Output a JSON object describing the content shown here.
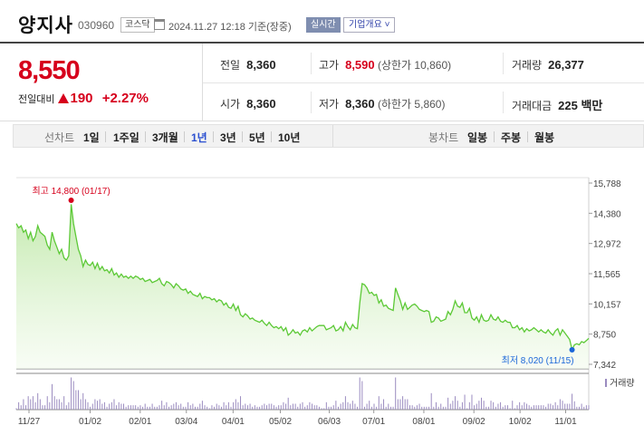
{
  "header": {
    "name": "양지사",
    "code": "030960",
    "market": "코스닥",
    "datetime": "2024.11.27 12:18 기준(장중)",
    "realtime_label": "실시간",
    "company_info_label": "기업개요 ˅"
  },
  "quote": {
    "price": "8,550",
    "change_label": "전일대비",
    "change_amount": "190",
    "change_pct": "+2.27%",
    "prev_close_label": "전일",
    "prev_close": "8,360",
    "high_label": "고가",
    "high": "8,590",
    "upper_limit": "(상한가 10,860)",
    "volume_label": "거래량",
    "volume": "26,377",
    "open_label": "시가",
    "open": "8,360",
    "low_label": "저가",
    "low": "8,360",
    "lower_limit": "(하한가 5,860)",
    "amount_label": "거래대금",
    "amount": "225 백만"
  },
  "toolbar": {
    "line_label": "선차트",
    "periods": [
      "1일",
      "1주일",
      "3개월",
      "1년",
      "3년",
      "5년",
      "10년"
    ],
    "active_period": "1년",
    "candle_label": "봉차트",
    "candles": [
      "일봉",
      "주봉",
      "월봉"
    ]
  },
  "colors": {
    "up": "#d6001c",
    "line": "#5cc936",
    "low_marker": "#1a66d9",
    "volume_bar": "#9b8cc0",
    "active_tab": "#2a4fd0"
  },
  "chart_data": {
    "type": "area",
    "yaxis_ticks": [
      "15,788",
      "14,380",
      "12,972",
      "11,565",
      "10,157",
      "8,750",
      "7,342"
    ],
    "ylim": [
      7342,
      15788
    ],
    "xaxis_ticks": [
      "11/27",
      "01/02",
      "02/01",
      "03/04",
      "04/01",
      "05/02",
      "06/03",
      "07/01",
      "08/01",
      "09/02",
      "10/02",
      "11/01"
    ],
    "high_annotation": "최고 14,800 (01/17)",
    "low_annotation": "최저 8,020 (11/15)",
    "volume_legend": "거래량",
    "values": [
      13900,
      13700,
      13800,
      13500,
      13600,
      13200,
      13500,
      13100,
      13300,
      13800,
      13500,
      13400,
      13300,
      12900,
      12700,
      13500,
      13100,
      12800,
      12500,
      12700,
      12300,
      12200,
      12400,
      14800,
      13900,
      13300,
      12700,
      12400,
      11900,
      12200,
      12000,
      11950,
      12100,
      11800,
      12050,
      11750,
      11900,
      11700,
      11750,
      11600,
      11800,
      11500,
      11600,
      11400,
      11550,
      11400,
      11450,
      11350,
      11450,
      11350,
      11450,
      11400,
      11300,
      11350,
      11200,
      11250,
      11300,
      11150,
      11200,
      11250,
      11350,
      11100,
      11000,
      11200,
      11150,
      11050,
      10900,
      11100,
      11000,
      10850,
      10800,
      10850,
      10650,
      10750,
      10600,
      10550,
      10500,
      10650,
      10400,
      10500,
      10450,
      10450,
      10350,
      10400,
      10250,
      10350,
      10300,
      10100,
      10200,
      10000,
      9950,
      10150,
      9850,
      10050,
      9650,
      9550,
      9700,
      9600,
      9450,
      9500,
      9400,
      9350,
      9300,
      9400,
      9250,
      9150,
      9300,
      9150,
      9050,
      9100,
      9000,
      9100,
      8900,
      9050,
      8700,
      8800,
      8950,
      8800,
      8850,
      8700,
      8900,
      8950,
      8850,
      9050,
      8900,
      9000,
      9100,
      9150,
      9150,
      9150,
      8950,
      9000,
      9050,
      9150,
      8900,
      8950,
      9100,
      8900,
      9300,
      9100,
      8950,
      9200,
      9050,
      9000,
      10200,
      11100,
      11050,
      10900,
      10650,
      10700,
      10550,
      10600,
      10200,
      10350,
      10050,
      10100,
      9950,
      9900,
      9850,
      10900,
      10600,
      10300,
      9900,
      10200,
      9900,
      10000,
      10100,
      10150,
      10050,
      9900,
      9850,
      9800,
      9850,
      9800,
      9300,
      9350,
      9550,
      9500,
      9350,
      9400,
      9450,
      9800,
      9650,
      9900,
      10300,
      10050,
      10000,
      10200,
      9750,
      9750,
      9950,
      9500,
      9400,
      9550,
      9300,
      9650,
      9400,
      9350,
      9400,
      9650,
      9450,
      9400,
      9550,
      9350,
      9300,
      9400,
      9300,
      9300,
      9050,
      9050,
      9150,
      8950,
      9050,
      8850,
      9000,
      8900,
      8950,
      9050,
      8950,
      8850,
      8950,
      8850,
      8800,
      8950,
      8800,
      8700,
      8900,
      9000,
      8700,
      8950,
      8800,
      8650,
      8500,
      8020,
      8250,
      8300,
      8250,
      8400,
      8350,
      8450,
      8550
    ]
  }
}
